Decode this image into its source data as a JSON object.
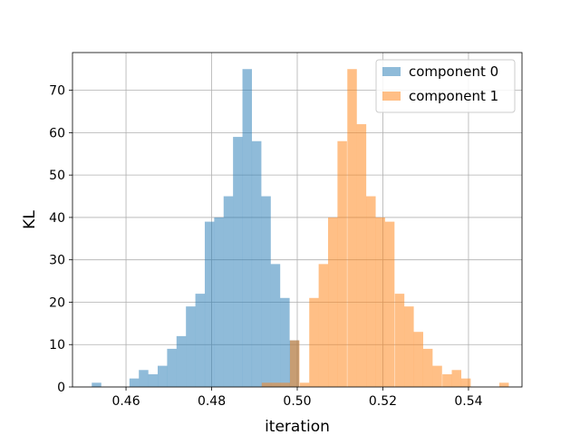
{
  "chart_data": {
    "type": "bar",
    "xlabel": "iteration",
    "ylabel": "KL",
    "xlim": [
      0.4475,
      0.5525
    ],
    "ylim": [
      0,
      78.9
    ],
    "xticks": [
      0.46,
      0.48,
      0.5,
      0.52,
      0.54
    ],
    "xtick_labels": [
      "0.46",
      "0.48",
      "0.50",
      "0.52",
      "0.54"
    ],
    "yticks": [
      0,
      10,
      20,
      30,
      40,
      50,
      60,
      70
    ],
    "ytick_labels": [
      "0",
      "10",
      "20",
      "30",
      "40",
      "50",
      "60",
      "70"
    ],
    "grid": true,
    "legend_position": "top-right",
    "series": [
      {
        "name": "component 0",
        "color": "#1f77b4",
        "bin_width": 0.00222,
        "bin_edges": [
          0.452,
          0.4542,
          0.4564,
          0.4586,
          0.4608,
          0.463,
          0.4652,
          0.4674,
          0.4696,
          0.4718,
          0.474,
          0.4762,
          0.4784,
          0.4806,
          0.4828,
          0.485,
          0.4872,
          0.4894,
          0.4916,
          0.4938,
          0.496,
          0.4982,
          0.5004
        ],
        "counts": [
          1,
          0,
          0,
          0,
          2,
          4,
          3,
          5,
          9,
          12,
          19,
          22,
          39,
          40,
          45,
          59,
          75,
          58,
          45,
          29,
          21,
          11
        ]
      },
      {
        "name": "component 1",
        "color": "#ff7f0e",
        "bin_width": 0.00222,
        "bin_edges": [
          0.4917,
          0.4939,
          0.4961,
          0.4983,
          0.5006,
          0.5028,
          0.505,
          0.5072,
          0.5094,
          0.5117,
          0.5139,
          0.5161,
          0.5183,
          0.5205,
          0.5228,
          0.525,
          0.5272,
          0.5294,
          0.5316,
          0.5339,
          0.5361,
          0.5383,
          0.5405,
          0.5427,
          0.545,
          0.5472,
          0.5494
        ],
        "counts": [
          1,
          1,
          1,
          11,
          1,
          21,
          29,
          40,
          58,
          75,
          62,
          45,
          40,
          39,
          22,
          19,
          13,
          9,
          5,
          3,
          4,
          2,
          0,
          0,
          0,
          1
        ]
      }
    ]
  }
}
